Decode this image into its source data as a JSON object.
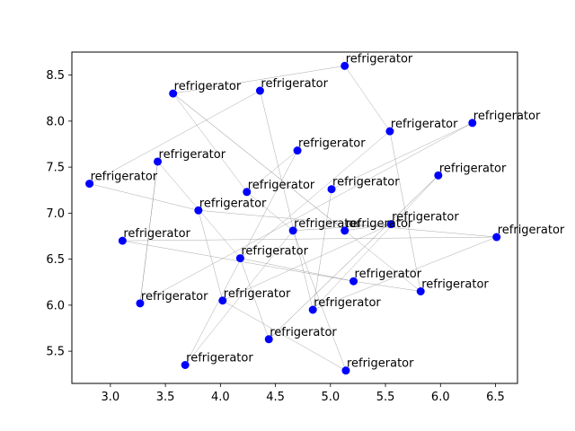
{
  "chart_data": {
    "type": "scatter",
    "title": "",
    "xlabel": "",
    "ylabel": "",
    "xlim": [
      2.65,
      6.7
    ],
    "ylim": [
      5.15,
      8.75
    ],
    "xticks": [
      "3.0",
      "3.5",
      "4.0",
      "4.5",
      "5.0",
      "5.5",
      "6.0",
      "6.5"
    ],
    "yticks": [
      "5.5",
      "6.0",
      "6.5",
      "7.0",
      "7.5",
      "8.0",
      "8.5"
    ],
    "point_color": "#0000ff",
    "edge_color": "#999999",
    "points": [
      {
        "x": 2.81,
        "y": 7.32,
        "label": "refrigerator"
      },
      {
        "x": 3.11,
        "y": 6.7,
        "label": "refrigerator"
      },
      {
        "x": 3.27,
        "y": 6.02,
        "label": "refrigerator"
      },
      {
        "x": 3.43,
        "y": 7.56,
        "label": "refrigerator"
      },
      {
        "x": 3.57,
        "y": 8.3,
        "label": "refrigerator"
      },
      {
        "x": 3.68,
        "y": 5.35,
        "label": "refrigerator"
      },
      {
        "x": 3.8,
        "y": 7.03,
        "label": "refrigerator"
      },
      {
        "x": 4.02,
        "y": 6.05,
        "label": "refrigerator"
      },
      {
        "x": 4.18,
        "y": 6.51,
        "label": "refrigerator"
      },
      {
        "x": 4.24,
        "y": 7.23,
        "label": "refrigerator"
      },
      {
        "x": 4.36,
        "y": 8.33,
        "label": "refrigerator"
      },
      {
        "x": 4.44,
        "y": 5.63,
        "label": "refrigerator"
      },
      {
        "x": 4.66,
        "y": 6.81,
        "label": "refrigerator"
      },
      {
        "x": 4.7,
        "y": 7.68,
        "label": "refrigerator"
      },
      {
        "x": 4.84,
        "y": 5.95,
        "label": "refrigerator"
      },
      {
        "x": 5.01,
        "y": 7.26,
        "label": "refrigerator"
      },
      {
        "x": 5.13,
        "y": 8.6,
        "label": "refrigerator"
      },
      {
        "x": 5.13,
        "y": 6.81,
        "label": "refrigerator"
      },
      {
        "x": 5.14,
        "y": 5.29,
        "label": "refrigerator"
      },
      {
        "x": 5.21,
        "y": 6.26,
        "label": "refrigerator"
      },
      {
        "x": 5.54,
        "y": 7.89,
        "label": "refrigerator"
      },
      {
        "x": 5.55,
        "y": 6.88,
        "label": "refrigerator"
      },
      {
        "x": 5.82,
        "y": 6.15,
        "label": "refrigerator"
      },
      {
        "x": 5.98,
        "y": 7.41,
        "label": "refrigerator"
      },
      {
        "x": 6.29,
        "y": 7.98,
        "label": "refrigerator"
      },
      {
        "x": 6.51,
        "y": 6.74,
        "label": "refrigerator"
      }
    ],
    "edges": [
      [
        0,
        10
      ],
      [
        0,
        6
      ],
      [
        1,
        19
      ],
      [
        1,
        25
      ],
      [
        2,
        3
      ],
      [
        2,
        24
      ],
      [
        3,
        8
      ],
      [
        4,
        16
      ],
      [
        4,
        9
      ],
      [
        4,
        17
      ],
      [
        5,
        13
      ],
      [
        5,
        12
      ],
      [
        6,
        25
      ],
      [
        6,
        7
      ],
      [
        7,
        18
      ],
      [
        8,
        11
      ],
      [
        8,
        20
      ],
      [
        9,
        12
      ],
      [
        9,
        13
      ],
      [
        10,
        14
      ],
      [
        11,
        23
      ],
      [
        12,
        21
      ],
      [
        14,
        15
      ],
      [
        14,
        23
      ],
      [
        16,
        20
      ],
      [
        18,
        12
      ],
      [
        19,
        22
      ],
      [
        19,
        8
      ],
      [
        20,
        22
      ],
      [
        21,
        7
      ],
      [
        22,
        4
      ],
      [
        23,
        11
      ],
      [
        24,
        15
      ],
      [
        25,
        14
      ],
      [
        17,
        21
      ],
      [
        3,
        2
      ]
    ]
  }
}
